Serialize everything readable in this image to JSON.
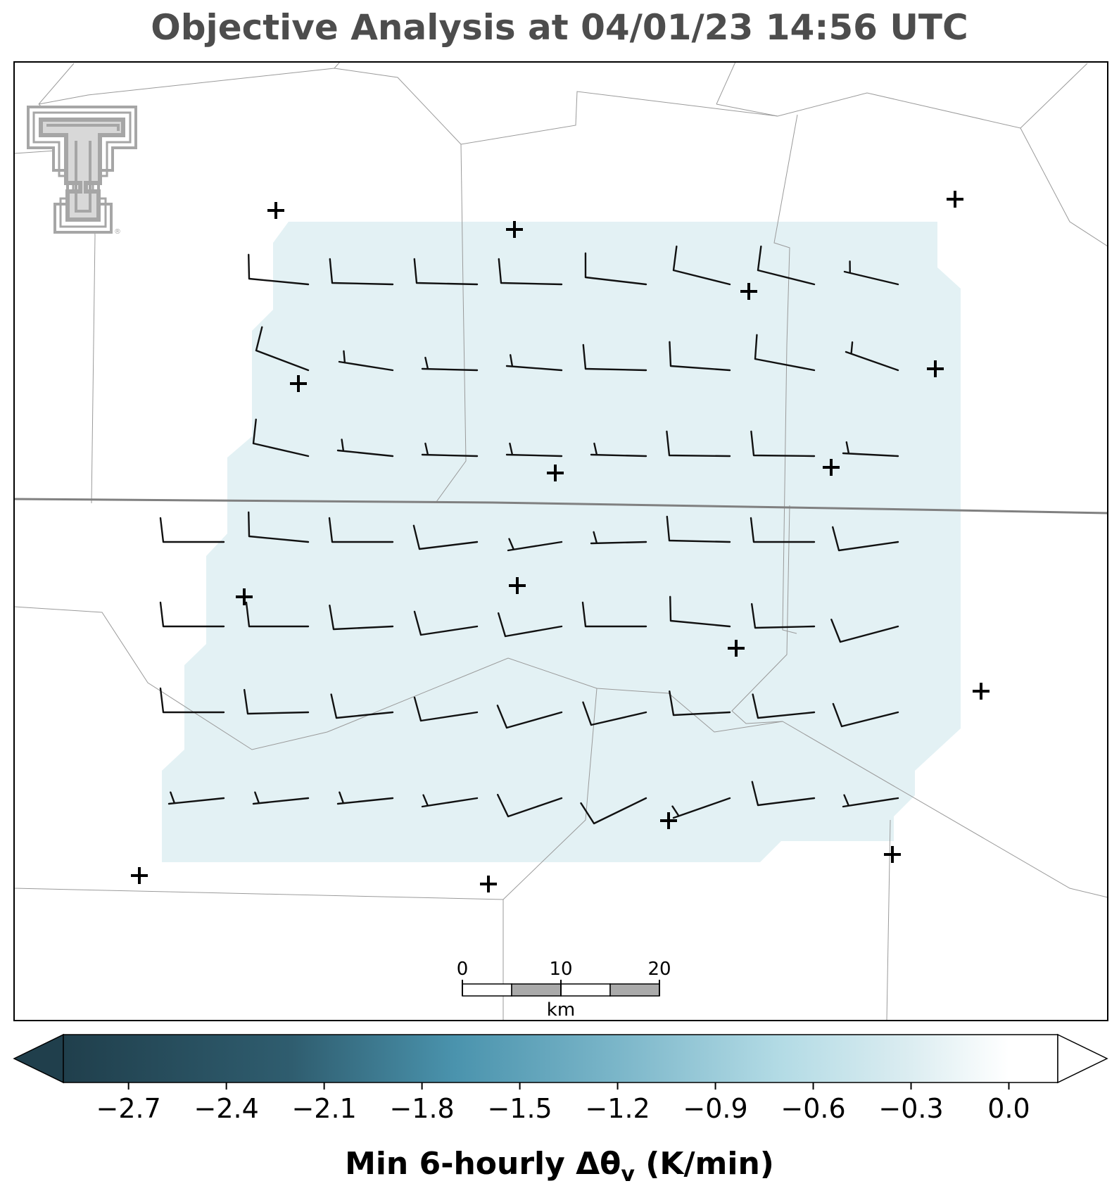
{
  "title": "Objective Analysis at 04/01/23 14:56 UTC",
  "logo": {
    "name": "texas-tech-double-t-logo",
    "mark": "®"
  },
  "colors": {
    "analysis_fill": "#e3f1f4",
    "boundary": "#9a9a9a",
    "state_line": "#808080",
    "barb": "#111111",
    "station": "#000000",
    "logo": "#a6a6a6"
  },
  "scale_bar": {
    "ticks": [
      "0",
      "10",
      "20"
    ],
    "unit": "km"
  },
  "colorbar": {
    "label_main": "Min 6-hourly Δθ",
    "label_sub": "v",
    "label_tail": " (K/min)",
    "range": [
      -2.9,
      0.15
    ],
    "extend": "both",
    "ticks": [
      "−2.7",
      "−2.4",
      "−2.1",
      "−1.8",
      "−1.5",
      "−1.2",
      "−0.9",
      "−0.6",
      "−0.3",
      "0.0"
    ],
    "tick_values": [
      -2.7,
      -2.4,
      -2.1,
      -1.8,
      -1.5,
      -1.2,
      -0.9,
      -0.6,
      -0.3,
      0.0
    ],
    "color_stops": [
      {
        "v": -2.9,
        "c": "#203f4c"
      },
      {
        "v": -2.2,
        "c": "#2f5d6f"
      },
      {
        "v": -1.7,
        "c": "#4a93ad"
      },
      {
        "v": -1.2,
        "c": "#7bb6c9"
      },
      {
        "v": -0.7,
        "c": "#b3dbe5"
      },
      {
        "v": -0.3,
        "c": "#dcedf1"
      },
      {
        "v": 0.0,
        "c": "#ffffff"
      }
    ]
  }
}
